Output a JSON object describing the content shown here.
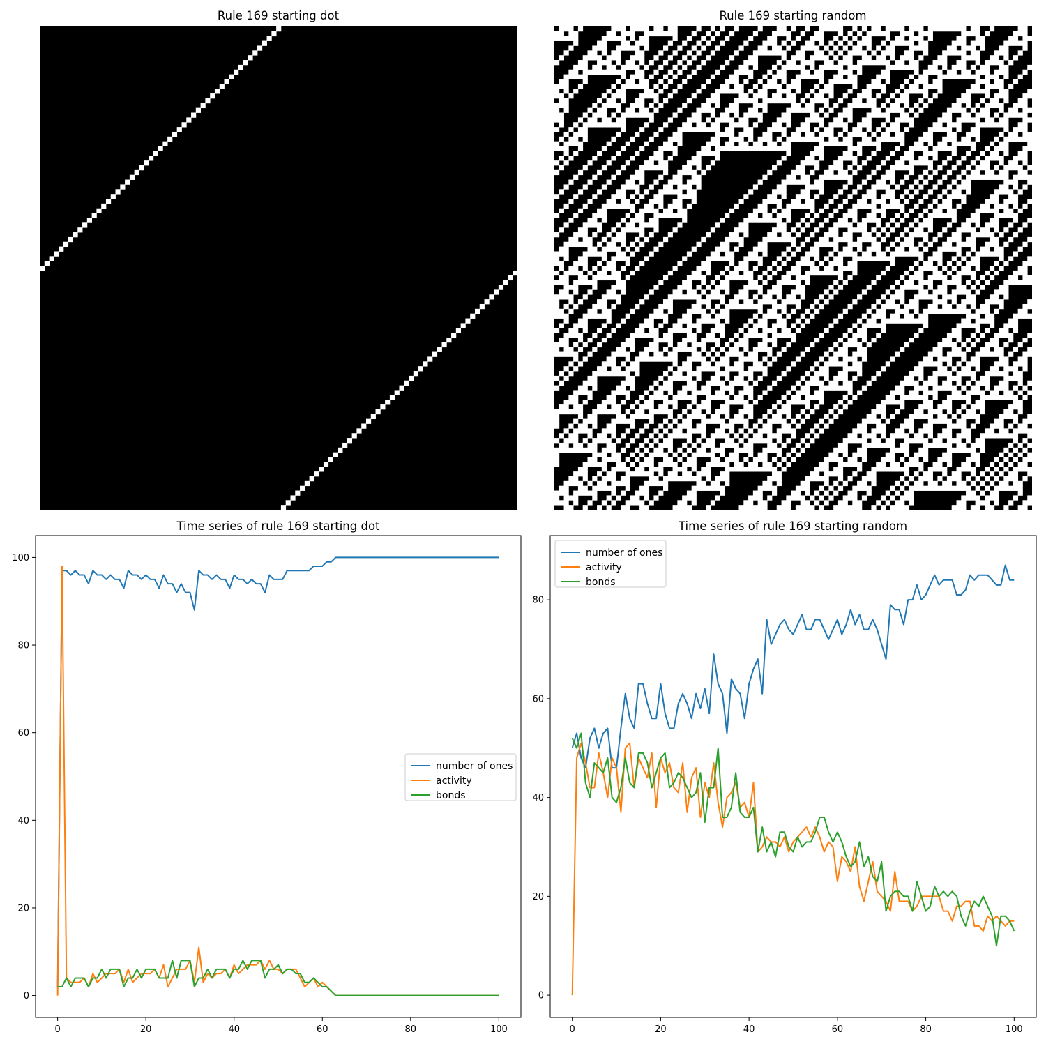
{
  "colors": {
    "number_of_ones": "#1f77b4",
    "activity": "#ff7f0e",
    "bonds": "#2ca02c",
    "cell_on": "#ffffff",
    "cell_off": "#000000"
  },
  "chart_data": [
    {
      "type": "heatmap",
      "title": "Rule 169 starting dot",
      "rule": 169,
      "width": 101,
      "steps": 101,
      "initial": "dot",
      "axes_visible": false
    },
    {
      "type": "heatmap",
      "title": "Rule 169 starting random",
      "rule": 169,
      "width": 101,
      "steps": 101,
      "initial": "random",
      "axes_visible": false
    },
    {
      "type": "line",
      "title": "Time series of rule 169 starting dot",
      "xlim": [
        -5,
        105
      ],
      "ylim": [
        -5,
        105
      ],
      "xticks": [
        0,
        20,
        40,
        60,
        80,
        100
      ],
      "yticks": [
        0,
        20,
        40,
        60,
        80,
        100
      ],
      "legend_placement": "center-right",
      "series": [
        {
          "name": "number of ones",
          "color_key": "number_of_ones",
          "x": [
            0,
            1,
            2,
            3,
            4,
            5,
            6,
            7,
            8,
            9,
            10,
            11,
            12,
            13,
            14,
            15,
            16,
            17,
            18,
            19,
            20,
            21,
            22,
            23,
            24,
            25,
            26,
            27,
            28,
            29,
            30,
            31,
            32,
            33,
            34,
            35,
            36,
            37,
            38,
            39,
            40,
            41,
            42,
            43,
            44,
            45,
            46,
            47,
            48,
            49,
            50,
            51,
            52,
            53,
            54,
            55,
            56,
            57,
            58,
            59,
            60,
            61,
            62,
            63,
            64,
            65,
            70,
            80,
            90,
            100
          ],
          "values": [
            2,
            97,
            97,
            96,
            97,
            96,
            96,
            94,
            97,
            96,
            96,
            95,
            96,
            95,
            95,
            93,
            97,
            96,
            96,
            95,
            96,
            95,
            95,
            93,
            96,
            94,
            94,
            92,
            94,
            92,
            92,
            88,
            97,
            96,
            96,
            95,
            96,
            95,
            95,
            93,
            96,
            95,
            95,
            94,
            95,
            94,
            94,
            92,
            96,
            95,
            95,
            95,
            97,
            97,
            97,
            97,
            97,
            97,
            98,
            98,
            98,
            99,
            99,
            100,
            100,
            100,
            100,
            100,
            100,
            100
          ]
        },
        {
          "name": "activity",
          "color_key": "activity",
          "x": [
            0,
            1,
            2,
            3,
            4,
            5,
            6,
            7,
            8,
            9,
            10,
            11,
            12,
            13,
            14,
            15,
            16,
            17,
            18,
            19,
            20,
            21,
            22,
            23,
            24,
            25,
            26,
            27,
            28,
            29,
            30,
            31,
            32,
            33,
            34,
            35,
            36,
            37,
            38,
            39,
            40,
            41,
            42,
            43,
            44,
            45,
            46,
            47,
            48,
            49,
            50,
            51,
            52,
            53,
            54,
            55,
            56,
            57,
            58,
            59,
            60,
            61,
            62,
            63,
            64,
            70,
            80,
            90,
            100
          ],
          "values": [
            0,
            98,
            4,
            3,
            3,
            3,
            4,
            2,
            5,
            3,
            4,
            5,
            5,
            5,
            6,
            3,
            6,
            3,
            4,
            5,
            5,
            5,
            6,
            4,
            7,
            2,
            4,
            6,
            6,
            6,
            8,
            3,
            11,
            3,
            5,
            4,
            5,
            5,
            6,
            4,
            7,
            5,
            6,
            7,
            7,
            7,
            8,
            6,
            8,
            6,
            6,
            5,
            6,
            6,
            6,
            4,
            2,
            3,
            4,
            2,
            3,
            2,
            1,
            0,
            0,
            0,
            0,
            0,
            0
          ]
        },
        {
          "name": "bonds",
          "color_key": "bonds",
          "x": [
            0,
            1,
            2,
            3,
            4,
            5,
            6,
            7,
            8,
            9,
            10,
            11,
            12,
            13,
            14,
            15,
            16,
            17,
            18,
            19,
            20,
            21,
            22,
            23,
            24,
            25,
            26,
            27,
            28,
            29,
            30,
            31,
            32,
            33,
            34,
            35,
            36,
            37,
            38,
            39,
            40,
            41,
            42,
            43,
            44,
            45,
            46,
            47,
            48,
            49,
            50,
            51,
            52,
            53,
            54,
            55,
            56,
            57,
            58,
            59,
            60,
            61,
            62,
            63,
            64,
            70,
            80,
            90,
            100
          ],
          "values": [
            2,
            2,
            4,
            2,
            4,
            4,
            4,
            2,
            4,
            4,
            6,
            4,
            6,
            6,
            6,
            2,
            4,
            4,
            6,
            4,
            6,
            6,
            6,
            4,
            4,
            4,
            8,
            4,
            8,
            8,
            8,
            2,
            4,
            4,
            6,
            4,
            6,
            6,
            6,
            4,
            6,
            6,
            8,
            6,
            8,
            8,
            8,
            4,
            6,
            6,
            7,
            5,
            6,
            6,
            5,
            5,
            3,
            3,
            4,
            3,
            2,
            2,
            1,
            0,
            0,
            0,
            0,
            0,
            0
          ]
        }
      ]
    },
    {
      "type": "line",
      "title": "Time series of rule 169 starting random",
      "xlim": [
        -5,
        105
      ],
      "ylim": [
        -4.5,
        93
      ],
      "xticks": [
        0,
        20,
        40,
        60,
        80,
        100
      ],
      "yticks": [
        0,
        20,
        40,
        60,
        80
      ],
      "legend_placement": "top-left",
      "series": [
        {
          "name": "number of ones",
          "color_key": "number_of_ones",
          "values": [
            50,
            53,
            48,
            46,
            52,
            54,
            50,
            53,
            54,
            46,
            46,
            54,
            61,
            56,
            54,
            63,
            63,
            59,
            56,
            56,
            63,
            57,
            54,
            54,
            59,
            61,
            59,
            56,
            61,
            58,
            62,
            57,
            69,
            63,
            61,
            53,
            64,
            62,
            61,
            56,
            63,
            66,
            68,
            61,
            76,
            71,
            73,
            75,
            76,
            74,
            73,
            75,
            77,
            74,
            74,
            76,
            76,
            74,
            72,
            74,
            76,
            73,
            75,
            78,
            75,
            77,
            74,
            74,
            76,
            74,
            71,
            68,
            79,
            78,
            78,
            75,
            80,
            80,
            83,
            80,
            81,
            83,
            85,
            83,
            84,
            84,
            84,
            81,
            81,
            82,
            85,
            84,
            85,
            85,
            85,
            84,
            83,
            83,
            87,
            84,
            84
          ]
        },
        {
          "name": "activity",
          "color_key": "activity",
          "values": [
            0,
            48,
            51,
            47,
            42,
            42,
            49,
            45,
            40,
            48,
            46,
            37,
            50,
            51,
            42,
            48,
            46,
            44,
            49,
            38,
            48,
            45,
            47,
            42,
            41,
            47,
            37,
            44,
            46,
            36,
            43,
            40,
            47,
            39,
            34,
            40,
            41,
            43,
            38,
            39,
            36,
            43,
            29,
            30,
            32,
            31,
            31,
            30,
            32,
            29,
            31,
            32,
            33,
            34,
            32,
            34,
            32,
            29,
            31,
            30,
            23,
            28,
            27,
            25,
            30,
            22,
            19,
            23,
            27,
            21,
            20,
            19,
            17,
            25,
            19,
            19,
            19,
            17,
            18,
            20,
            20,
            20,
            20,
            20,
            17,
            17,
            15,
            18,
            18,
            19,
            19,
            14,
            14,
            13,
            16,
            15,
            16,
            15,
            14,
            15,
            15
          ]
        },
        {
          "name": "bonds",
          "color_key": "bonds",
          "values": [
            52,
            50,
            53,
            43,
            40,
            47,
            46,
            45,
            48,
            40,
            39,
            42,
            48,
            43,
            42,
            49,
            49,
            47,
            42,
            45,
            48,
            49,
            42,
            43,
            45,
            44,
            42,
            40,
            41,
            45,
            35,
            42,
            42,
            50,
            36,
            36,
            38,
            45,
            37,
            36,
            36,
            38,
            29,
            34,
            29,
            31,
            28,
            33,
            33,
            30,
            29,
            32,
            30,
            31,
            31,
            33,
            36,
            36,
            33,
            31,
            33,
            31,
            28,
            26,
            27,
            31,
            26,
            28,
            24,
            23,
            27,
            17,
            20,
            21,
            21,
            20,
            20,
            17,
            23,
            20,
            17,
            18,
            22,
            20,
            21,
            20,
            21,
            20,
            16,
            14,
            17,
            19,
            18,
            20,
            18,
            16,
            10,
            16,
            16,
            15,
            13
          ]
        }
      ]
    }
  ]
}
